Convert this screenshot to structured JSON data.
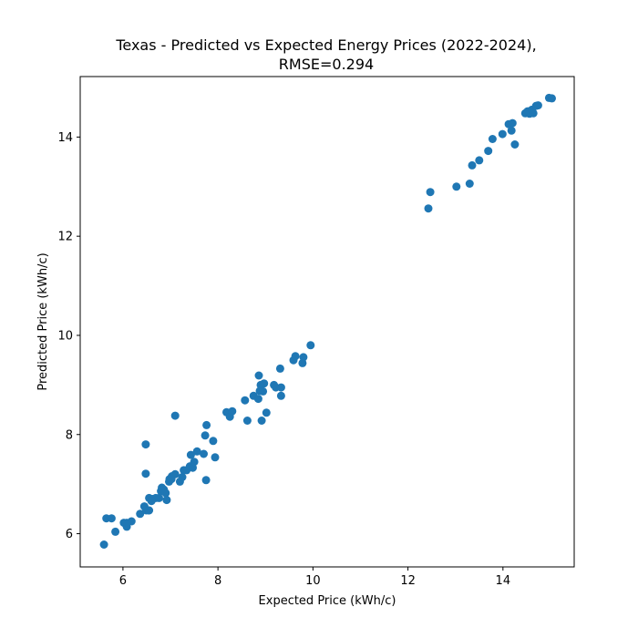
{
  "chart_data": {
    "type": "scatter",
    "title": "Texas - Predicted vs Expected Energy Prices (2022-2024),",
    "subtitle": "RMSE=0.294",
    "xlabel": "Expected Price (kWh/c)",
    "ylabel": "Predicted Price (kWh/c)",
    "xlim": [
      5.1,
      15.5
    ],
    "ylim": [
      5.33,
      15.22
    ],
    "xticks": [
      6,
      8,
      10,
      12,
      14
    ],
    "yticks": [
      6,
      8,
      10,
      12,
      14
    ],
    "grid": false,
    "legend": "none",
    "color": "#1f77b4",
    "series": [
      {
        "points": [
          [
            5.6,
            5.78
          ],
          [
            5.65,
            6.31
          ],
          [
            5.76,
            6.31
          ],
          [
            5.84,
            6.04
          ],
          [
            6.02,
            6.22
          ],
          [
            6.08,
            6.14
          ],
          [
            6.18,
            6.25
          ],
          [
            6.08,
            6.22
          ],
          [
            6.36,
            6.4
          ],
          [
            6.45,
            6.55
          ],
          [
            6.49,
            6.47
          ],
          [
            6.54,
            6.47
          ],
          [
            6.55,
            6.72
          ],
          [
            6.62,
            6.7
          ],
          [
            6.69,
            6.72
          ],
          [
            6.6,
            6.66
          ],
          [
            6.76,
            6.72
          ],
          [
            6.8,
            6.86
          ],
          [
            6.82,
            6.93
          ],
          [
            6.86,
            6.89
          ],
          [
            6.9,
            6.82
          ],
          [
            6.92,
            6.68
          ],
          [
            6.97,
            7.05
          ],
          [
            7.03,
            7.16
          ],
          [
            7.1,
            7.2
          ],
          [
            7.2,
            7.05
          ],
          [
            7.25,
            7.14
          ],
          [
            7.28,
            7.28
          ],
          [
            7.34,
            7.28
          ],
          [
            7.41,
            7.36
          ],
          [
            7.43,
            7.59
          ],
          [
            7.47,
            7.33
          ],
          [
            7.5,
            7.45
          ],
          [
            7.56,
            7.66
          ],
          [
            7.7,
            7.61
          ],
          [
            7.73,
            7.98
          ],
          [
            7.76,
            8.19
          ],
          [
            7.75,
            7.08
          ],
          [
            7.9,
            7.87
          ],
          [
            7.94,
            7.54
          ],
          [
            7.1,
            8.38
          ],
          [
            6.48,
            7.8
          ],
          [
            6.48,
            7.21
          ],
          [
            6.55,
            6.47
          ],
          [
            8.18,
            8.45
          ],
          [
            8.25,
            8.36
          ],
          [
            8.3,
            8.47
          ],
          [
            8.57,
            8.69
          ],
          [
            8.62,
            8.28
          ],
          [
            8.75,
            8.78
          ],
          [
            8.85,
            8.72
          ],
          [
            8.86,
            9.19
          ],
          [
            8.9,
            9.0
          ],
          [
            8.92,
            8.28
          ],
          [
            8.95,
            8.87
          ],
          [
            8.97,
            9.03
          ],
          [
            9.02,
            8.44
          ],
          [
            9.18,
            9.0
          ],
          [
            9.22,
            8.95
          ],
          [
            9.31,
            9.33
          ],
          [
            9.33,
            8.78
          ],
          [
            9.33,
            8.95
          ],
          [
            9.59,
            9.5
          ],
          [
            9.63,
            9.58
          ],
          [
            9.78,
            9.44
          ],
          [
            9.8,
            9.56
          ],
          [
            9.95,
            9.8
          ],
          [
            8.88,
            8.88
          ],
          [
            6.98,
            7.1
          ],
          [
            7.02,
            7.1
          ],
          [
            12.43,
            12.56
          ],
          [
            12.47,
            12.89
          ],
          [
            13.02,
            13.0
          ],
          [
            13.3,
            13.06
          ],
          [
            13.35,
            13.43
          ],
          [
            13.5,
            13.53
          ],
          [
            13.69,
            13.72
          ],
          [
            13.78,
            13.96
          ],
          [
            13.99,
            14.06
          ],
          [
            14.12,
            14.26
          ],
          [
            14.18,
            14.13
          ],
          [
            14.2,
            14.28
          ],
          [
            14.25,
            13.85
          ],
          [
            14.47,
            14.48
          ],
          [
            14.52,
            14.52
          ],
          [
            14.56,
            14.47
          ],
          [
            14.61,
            14.55
          ],
          [
            14.64,
            14.48
          ],
          [
            14.7,
            14.63
          ],
          [
            14.74,
            14.64
          ],
          [
            14.97,
            14.79
          ],
          [
            15.03,
            14.78
          ]
        ]
      }
    ]
  }
}
